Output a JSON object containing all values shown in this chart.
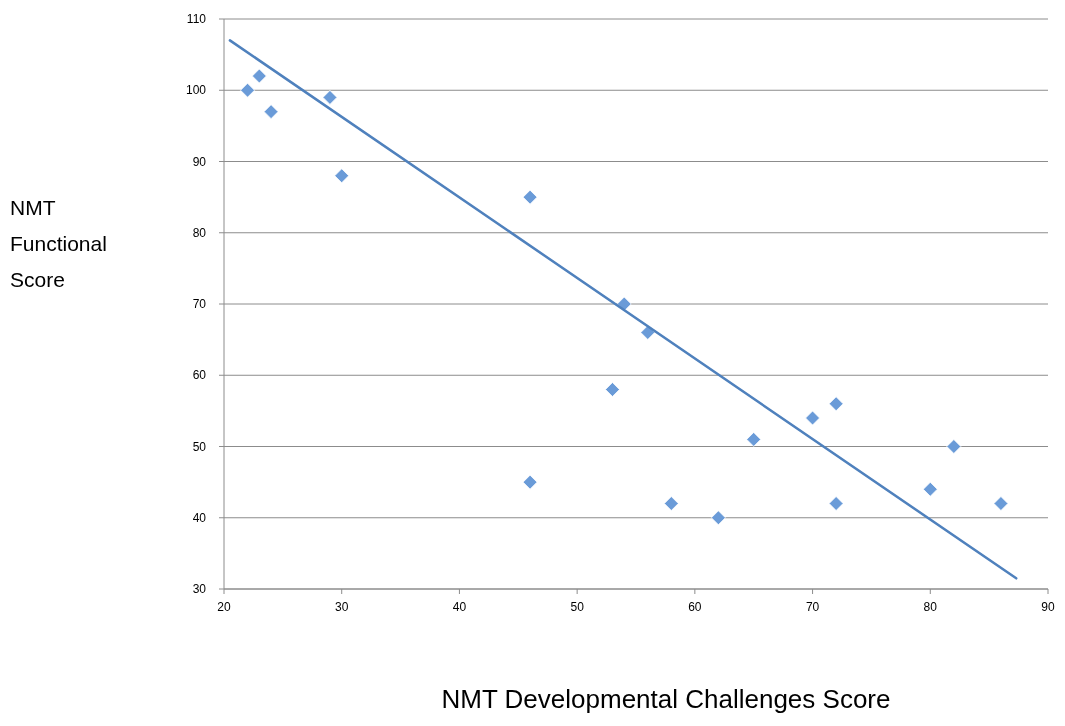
{
  "chart_data": {
    "type": "scatter",
    "xlabel": "NMT Developmental Challenges Score",
    "ylabel": "NMT Functional Score",
    "xlim": [
      20,
      90
    ],
    "xticks": [
      20,
      30,
      40,
      50,
      60,
      70,
      80,
      90
    ],
    "ylim": [
      30,
      110
    ],
    "yticks": [
      30,
      40,
      50,
      60,
      70,
      80,
      90,
      100,
      110
    ],
    "grid": "y",
    "series": [
      {
        "marker": "diamond",
        "color": "#6a9bd8",
        "x": [
          22,
          23,
          24,
          29,
          30,
          46,
          46,
          53,
          54,
          56,
          58,
          62,
          65,
          70,
          72,
          72,
          80,
          82,
          86
        ],
        "values": [
          100,
          102,
          97,
          99,
          88,
          85,
          45,
          58,
          70,
          66,
          42,
          40,
          51,
          54,
          56,
          42,
          44,
          50,
          42
        ]
      },
      {
        "type": "line",
        "marker": "none",
        "color": "#4f81bd",
        "x": [
          20.5,
          87.3
        ],
        "values": [
          107,
          31.5
        ]
      }
    ]
  }
}
